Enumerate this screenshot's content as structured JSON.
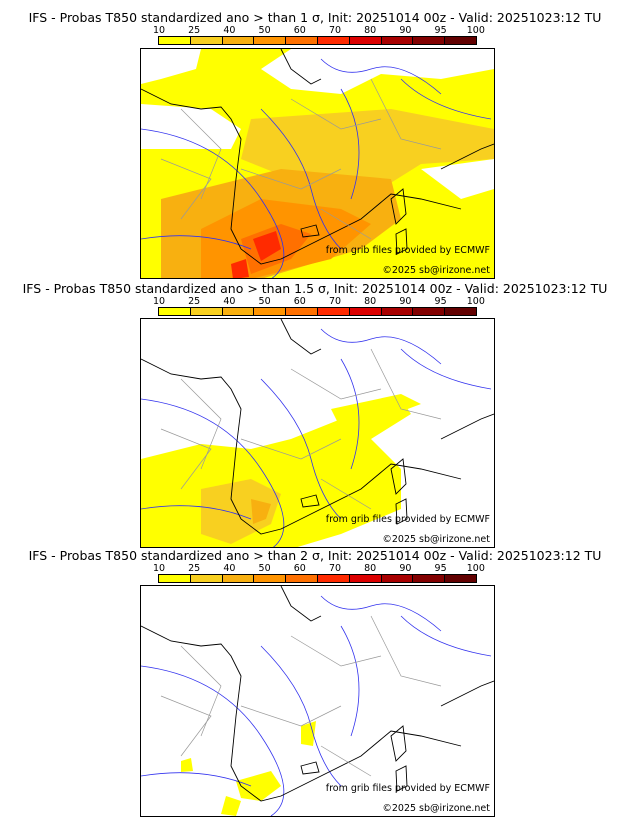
{
  "panels": [
    {
      "title": "IFS - Probas T850  standardized ano > than 1 σ, Init: 20251014 00z - Valid: 20251023:12 TU",
      "level": "high"
    },
    {
      "title": "IFS - Probas T850  standardized ano > than 1.5 σ, Init: 20251014 00z - Valid: 20251023:12 TU",
      "level": "mid"
    },
    {
      "title": "IFS - Probas T850  standardized ano > than 2 σ, Init: 20251014 00z - Valid: 20251023:12 TU",
      "level": "low"
    }
  ],
  "colorbar": {
    "ticks": [
      "10",
      "25",
      "40",
      "50",
      "60",
      "70",
      "80",
      "90",
      "95",
      "100"
    ],
    "colors": [
      "#ffff00",
      "#f8d020",
      "#f8b010",
      "#ff9400",
      "#ff7000",
      "#ff2a00",
      "#dc0000",
      "#a80000",
      "#820000",
      "#620000"
    ]
  },
  "credits": {
    "source": "from grib files provided by ECMWF",
    "copyright": "©2025 sb@irizone.net"
  }
}
